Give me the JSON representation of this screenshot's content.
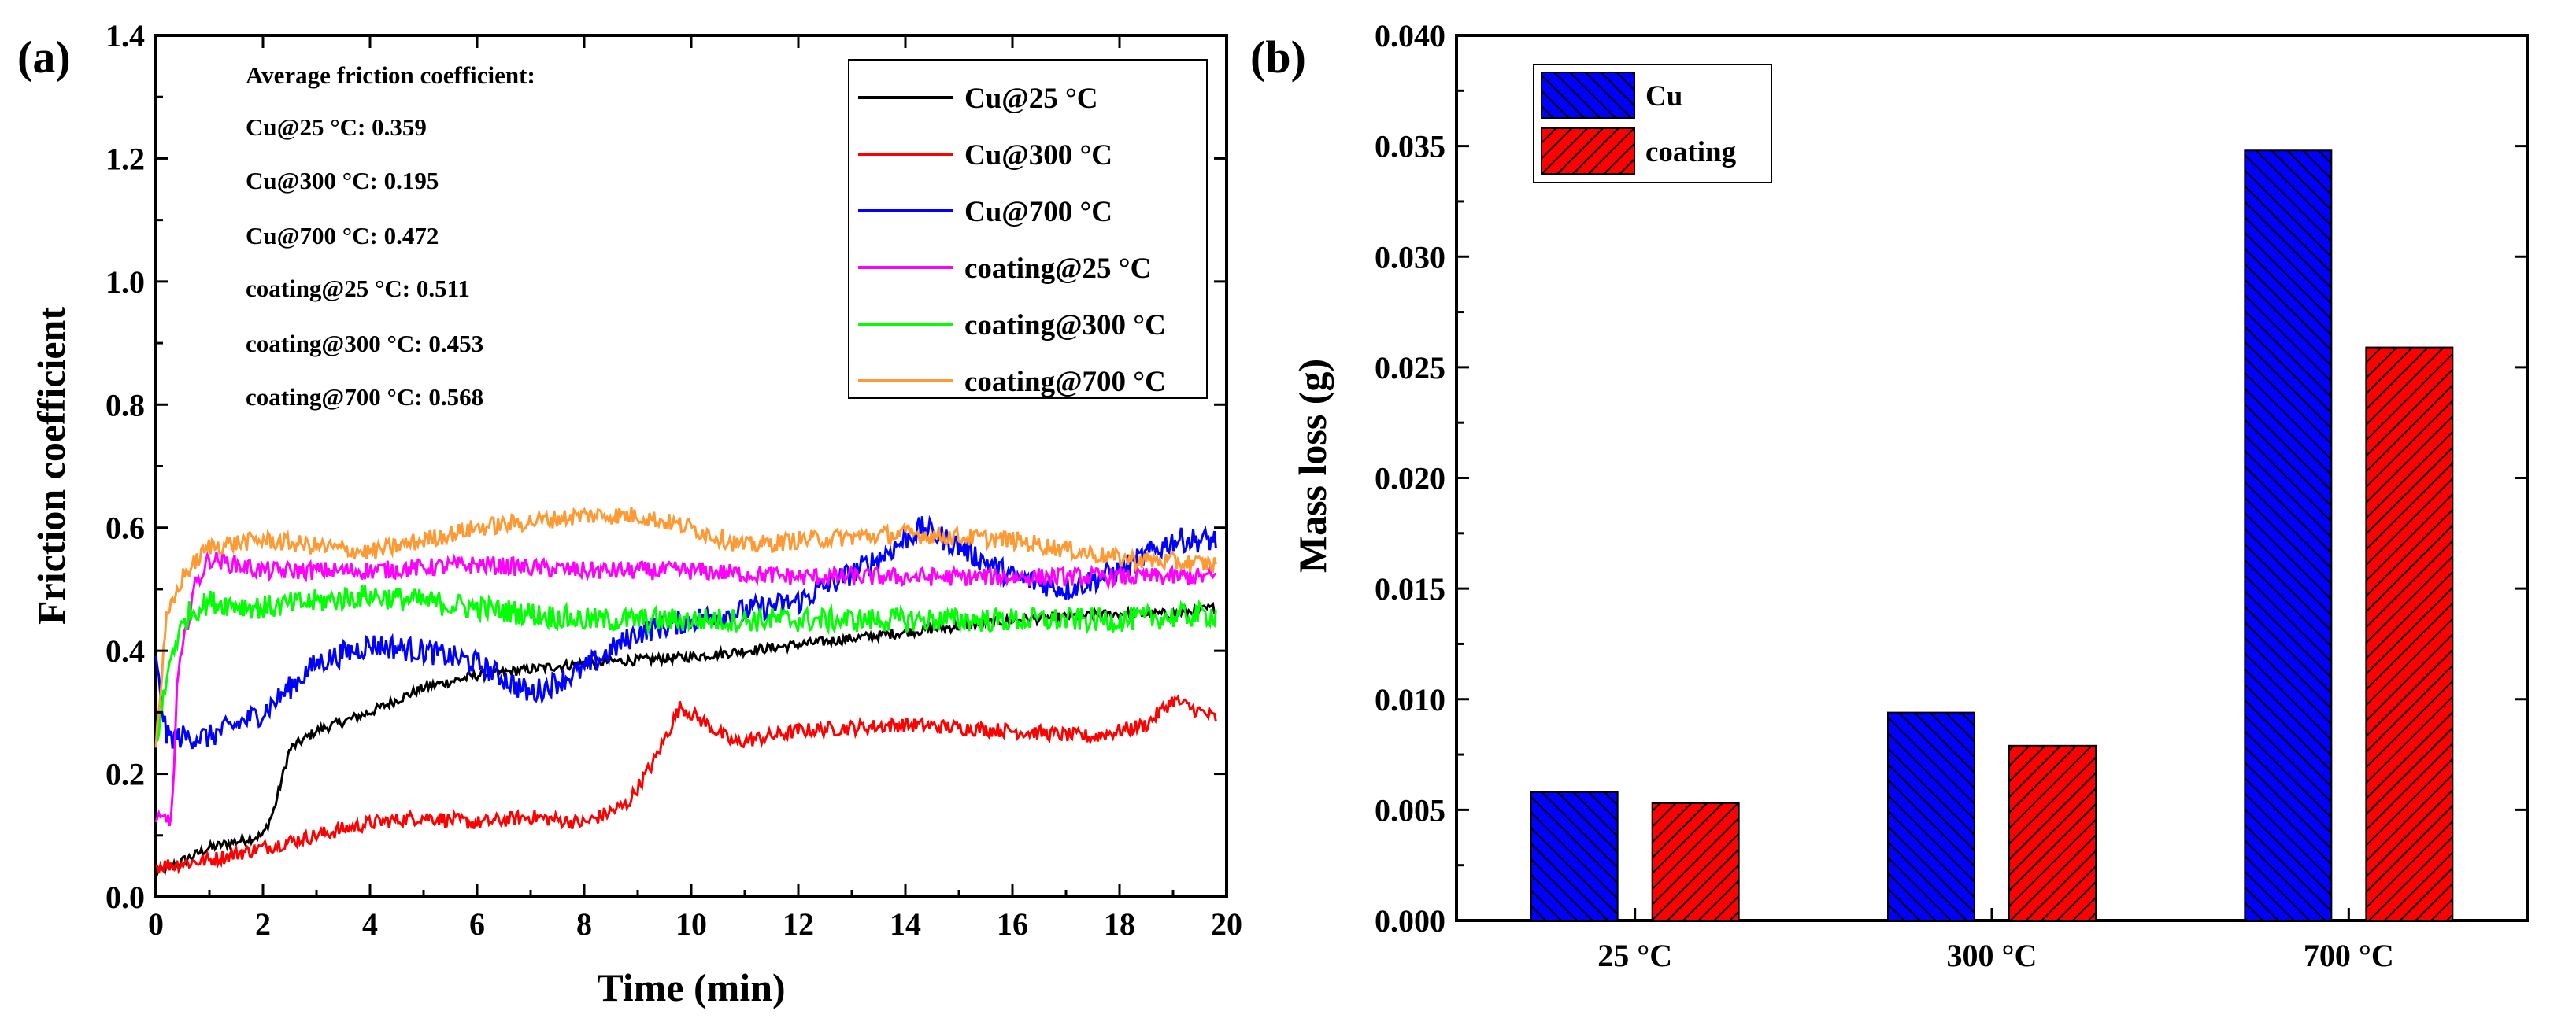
{
  "chart_data": [
    {
      "panel": "(a)",
      "type": "line",
      "xlabel": "Time (min)",
      "ylabel": "Friction coefficient",
      "xlim": [
        0,
        20
      ],
      "ylim": [
        0,
        1.4
      ],
      "xticks": [
        "0",
        "2",
        "4",
        "6",
        "8",
        "10",
        "12",
        "14",
        "16",
        "18",
        "20"
      ],
      "yticks": [
        "0.0",
        "0.2",
        "0.4",
        "0.6",
        "0.8",
        "1.0",
        "1.2",
        "1.4"
      ],
      "annotation_title": "Average friction coefficient:",
      "annotations": [
        "Cu@25 °C: 0.359",
        "Cu@300 °C: 0.195",
        "Cu@700 °C: 0.472",
        "coating@25 °C: 0.511",
        "coating@300 °C: 0.453",
        "coating@700 °C: 0.568"
      ],
      "legend_position": "top-right",
      "series": [
        {
          "name": "Cu@25 °C",
          "color": "#000000",
          "noise": 0.008,
          "x": [
            0,
            0.3,
            1,
            2,
            2.2,
            2.5,
            3,
            4,
            5,
            6,
            7,
            8,
            10,
            12,
            14,
            16,
            18,
            19,
            19.8
          ],
          "y": [
            0.04,
            0.05,
            0.08,
            0.1,
            0.14,
            0.24,
            0.27,
            0.3,
            0.34,
            0.36,
            0.37,
            0.38,
            0.39,
            0.41,
            0.43,
            0.45,
            0.46,
            0.46,
            0.47
          ]
        },
        {
          "name": "Cu@300 °C",
          "color": "#ff0000",
          "noise": 0.012,
          "x": [
            0,
            1,
            2,
            3,
            4,
            5,
            6,
            7,
            8,
            8.8,
            9.3,
            9.8,
            10.3,
            10.8,
            12,
            14,
            16,
            17.5,
            18.5,
            19,
            19.8
          ],
          "y": [
            0.05,
            0.06,
            0.08,
            0.1,
            0.12,
            0.13,
            0.12,
            0.13,
            0.12,
            0.15,
            0.22,
            0.31,
            0.28,
            0.25,
            0.27,
            0.28,
            0.27,
            0.26,
            0.28,
            0.32,
            0.29
          ]
        },
        {
          "name": "Cu@700 °C",
          "color": "#0000ff",
          "noise": 0.02,
          "x": [
            0,
            0.2,
            1,
            2,
            3,
            4,
            5,
            6,
            7,
            8,
            9,
            10,
            12,
            13.5,
            14.3,
            15,
            16,
            17,
            18,
            19,
            19.8
          ],
          "y": [
            0.38,
            0.26,
            0.26,
            0.3,
            0.38,
            0.41,
            0.4,
            0.38,
            0.33,
            0.37,
            0.43,
            0.45,
            0.48,
            0.55,
            0.6,
            0.57,
            0.52,
            0.5,
            0.53,
            0.58,
            0.58
          ]
        },
        {
          "name": "coating@25 °C",
          "color": "#ff00ff",
          "noise": 0.015,
          "x": [
            0,
            0.3,
            0.4,
            0.7,
            1,
            2,
            4,
            6,
            8,
            10,
            12,
            14,
            16,
            18,
            19.8
          ],
          "y": [
            0.12,
            0.13,
            0.35,
            0.5,
            0.55,
            0.53,
            0.53,
            0.54,
            0.53,
            0.53,
            0.52,
            0.52,
            0.52,
            0.52,
            0.52
          ]
        },
        {
          "name": "coating@300 °C",
          "color": "#00ff00",
          "noise": 0.02,
          "x": [
            0,
            0.3,
            0.6,
            1,
            2,
            4,
            6,
            8,
            10,
            12,
            14,
            16,
            18,
            19.8
          ],
          "y": [
            0.25,
            0.4,
            0.46,
            0.48,
            0.47,
            0.49,
            0.47,
            0.45,
            0.45,
            0.45,
            0.45,
            0.45,
            0.45,
            0.46
          ]
        },
        {
          "name": "coating@700 °C",
          "color": "#ff9933",
          "noise": 0.015,
          "x": [
            0,
            0.2,
            0.5,
            1,
            2,
            3,
            4,
            5,
            6,
            7,
            8,
            9,
            10,
            11,
            12,
            14,
            16,
            18,
            19.8
          ],
          "y": [
            0.25,
            0.45,
            0.52,
            0.57,
            0.58,
            0.57,
            0.56,
            0.58,
            0.6,
            0.61,
            0.62,
            0.62,
            0.6,
            0.57,
            0.58,
            0.59,
            0.58,
            0.55,
            0.54
          ]
        }
      ]
    },
    {
      "panel": "(b)",
      "type": "bar",
      "xlabel": "",
      "ylabel": "Mass loss (g)",
      "categories": [
        "25 °C",
        "300 °C",
        "700 °C"
      ],
      "ylim": [
        0,
        0.04
      ],
      "yticks": [
        "0.000",
        "0.005",
        "0.010",
        "0.015",
        "0.020",
        "0.025",
        "0.030",
        "0.035",
        "0.040"
      ],
      "legend_position": "top-left",
      "series": [
        {
          "name": "Cu",
          "color": "#0000ff",
          "values": [
            0.0058,
            0.0094,
            0.0348
          ]
        },
        {
          "name": "coating",
          "color": "#ff0000",
          "values": [
            0.0053,
            0.0079,
            0.0259
          ]
        }
      ]
    }
  ]
}
